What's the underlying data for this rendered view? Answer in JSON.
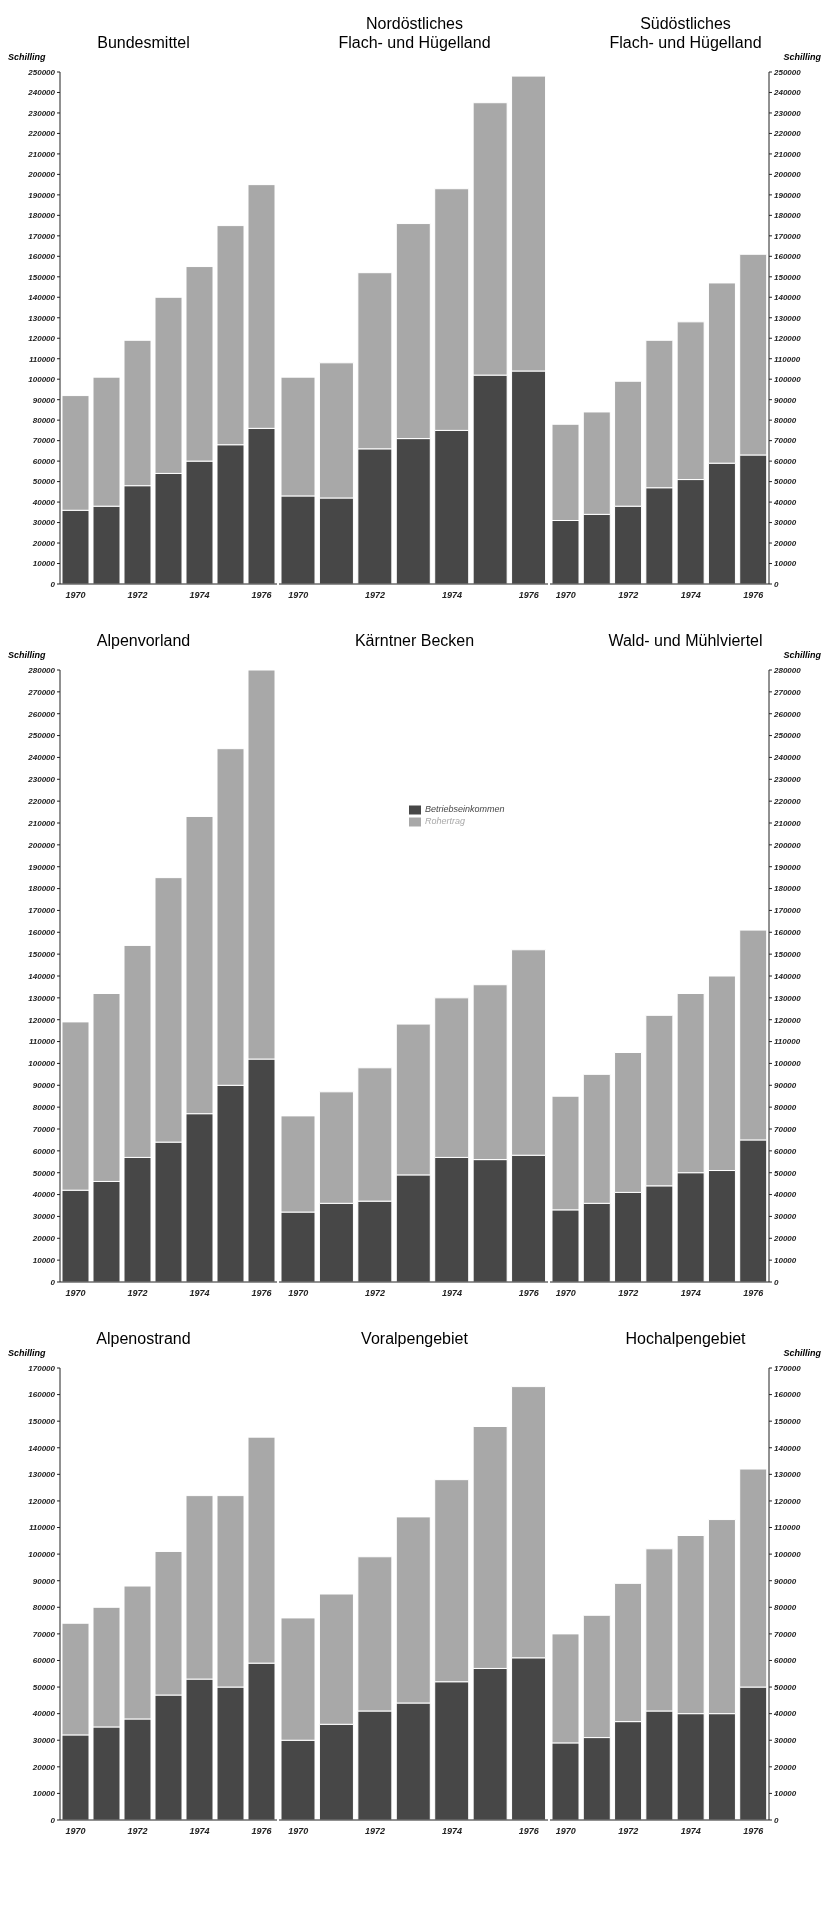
{
  "chart_data": [
    {
      "type": "bar",
      "title": "Bundesmittel",
      "ylabel": "Schilling",
      "stacked": true,
      "categories": [
        "1970",
        null,
        "1972",
        null,
        "1974",
        null,
        "1976"
      ],
      "ylim": [
        0,
        250000
      ],
      "yticks": [
        0,
        10000,
        20000,
        30000,
        40000,
        50000,
        60000,
        70000,
        80000,
        90000,
        100000,
        110000,
        120000,
        130000,
        140000,
        150000,
        160000,
        170000,
        180000,
        190000,
        200000,
        210000,
        220000,
        230000,
        240000,
        250000
      ],
      "series": [
        {
          "color": "#474747",
          "values": [
            36000,
            38000,
            48000,
            54000,
            60000,
            68000,
            76000
          ]
        },
        {
          "color": "#a8a8a8",
          "values": [
            56000,
            63000,
            71000,
            86000,
            95000,
            107000,
            119000
          ]
        }
      ]
    },
    {
      "type": "bar",
      "title": "Nordöstliches\nFlach- und Hügelland",
      "stacked": true,
      "tick_labels": "x",
      "categories": [
        "1970",
        null,
        "1972",
        null,
        "1974",
        null,
        "1976"
      ],
      "ylim": [
        0,
        250000
      ],
      "series": [
        {
          "color": "#474747",
          "values": [
            43000,
            42000,
            66000,
            71000,
            75000,
            102000,
            104000
          ]
        },
        {
          "color": "#a8a8a8",
          "values": [
            58000,
            66000,
            86000,
            105000,
            118000,
            133000,
            144000
          ]
        }
      ]
    },
    {
      "type": "bar",
      "title": "Südöstliches\nFlach- und Hügelland",
      "ylabel": "Schilling",
      "stacked": true,
      "categories": [
        "1970",
        null,
        "1972",
        null,
        "1974",
        null,
        "1976"
      ],
      "ylim": [
        0,
        250000
      ],
      "yticks": [
        0,
        10000,
        20000,
        30000,
        40000,
        50000,
        60000,
        70000,
        80000,
        90000,
        100000,
        110000,
        120000,
        130000,
        140000,
        150000,
        160000,
        170000,
        180000,
        190000,
        200000,
        210000,
        220000,
        230000,
        240000,
        250000
      ],
      "series": [
        {
          "color": "#474747",
          "values": [
            31000,
            34000,
            38000,
            47000,
            51000,
            59000,
            63000
          ]
        },
        {
          "color": "#a8a8a8",
          "values": [
            47000,
            50000,
            61000,
            72000,
            77000,
            88000,
            98000
          ]
        }
      ]
    },
    {
      "type": "bar",
      "title": "Alpenvorland",
      "ylabel": "Schilling",
      "stacked": true,
      "categories": [
        "1970",
        null,
        "1972",
        null,
        "1974",
        null,
        "1976"
      ],
      "ylim": [
        0,
        280000
      ],
      "yticks": [
        0,
        10000,
        20000,
        30000,
        40000,
        50000,
        60000,
        70000,
        80000,
        90000,
        100000,
        110000,
        120000,
        130000,
        140000,
        150000,
        160000,
        170000,
        180000,
        190000,
        200000,
        210000,
        220000,
        230000,
        240000,
        250000,
        260000,
        270000,
        280000
      ],
      "series": [
        {
          "color": "#474747",
          "values": [
            42000,
            46000,
            57000,
            64000,
            77000,
            90000,
            102000
          ]
        },
        {
          "color": "#a8a8a8",
          "values": [
            77000,
            86000,
            97000,
            121000,
            136000,
            154000,
            178000
          ]
        }
      ]
    },
    {
      "type": "bar",
      "title": "Kärntner Becken",
      "stacked": true,
      "tick_labels": "x",
      "legend": "top right",
      "categories": [
        "1970",
        null,
        "1972",
        null,
        "1974",
        null,
        "1976"
      ],
      "ylim": [
        0,
        280000
      ],
      "series": [
        {
          "name": "Betriebseinkommen",
          "color": "#474747",
          "values": [
            32000,
            36000,
            37000,
            49000,
            57000,
            56000,
            58000
          ]
        },
        {
          "name": "Rohertrag",
          "color": "#a8a8a8",
          "values": [
            44000,
            51000,
            61000,
            69000,
            73000,
            80000,
            94000
          ]
        }
      ]
    },
    {
      "type": "bar",
      "title": "Wald- und Mühlviertel",
      "ylabel": "Schilling",
      "stacked": true,
      "categories": [
        "1970",
        null,
        "1972",
        null,
        "1974",
        null,
        "1976"
      ],
      "ylim": [
        0,
        280000
      ],
      "yticks": [
        0,
        10000,
        20000,
        30000,
        40000,
        50000,
        60000,
        70000,
        80000,
        90000,
        100000,
        110000,
        120000,
        130000,
        140000,
        150000,
        160000,
        170000,
        180000,
        190000,
        200000,
        210000,
        220000,
        230000,
        240000,
        250000,
        260000,
        270000,
        280000
      ],
      "series": [
        {
          "color": "#474747",
          "values": [
            33000,
            36000,
            41000,
            44000,
            50000,
            51000,
            65000
          ]
        },
        {
          "color": "#a8a8a8",
          "values": [
            52000,
            59000,
            64000,
            78000,
            82000,
            89000,
            96000
          ]
        }
      ]
    },
    {
      "type": "bar",
      "title": "Alpenostrand",
      "ylabel": "Schilling",
      "stacked": true,
      "categories": [
        "1970",
        null,
        "1972",
        null,
        "1974",
        null,
        "1976"
      ],
      "ylim": [
        0,
        170000
      ],
      "yticks": [
        0,
        10000,
        20000,
        30000,
        40000,
        50000,
        60000,
        70000,
        80000,
        90000,
        100000,
        110000,
        120000,
        130000,
        140000,
        150000,
        160000,
        170000
      ],
      "series": [
        {
          "color": "#474747",
          "values": [
            32000,
            35000,
            38000,
            47000,
            53000,
            50000,
            59000
          ]
        },
        {
          "color": "#a8a8a8",
          "values": [
            42000,
            45000,
            50000,
            54000,
            69000,
            72000,
            85000
          ]
        }
      ]
    },
    {
      "type": "bar",
      "title": "Voralpengebiet",
      "stacked": true,
      "tick_labels": "x",
      "categories": [
        "1970",
        null,
        "1972",
        null,
        "1974",
        null,
        "1976"
      ],
      "ylim": [
        0,
        170000
      ],
      "series": [
        {
          "color": "#474747",
          "values": [
            30000,
            36000,
            41000,
            44000,
            52000,
            57000,
            61000
          ]
        },
        {
          "color": "#a8a8a8",
          "values": [
            46000,
            49000,
            58000,
            70000,
            76000,
            91000,
            102000
          ]
        }
      ]
    },
    {
      "type": "bar",
      "title": "Hochalpengebiet",
      "ylabel": "Schilling",
      "stacked": true,
      "categories": [
        "1970",
        null,
        "1972",
        null,
        "1974",
        null,
        "1976"
      ],
      "ylim": [
        0,
        170000
      ],
      "yticks": [
        0,
        10000,
        20000,
        30000,
        40000,
        50000,
        60000,
        70000,
        80000,
        90000,
        100000,
        110000,
        120000,
        130000,
        140000,
        150000,
        160000,
        170000
      ],
      "series": [
        {
          "color": "#474747",
          "values": [
            29000,
            31000,
            37000,
            41000,
            40000,
            40000,
            50000
          ]
        },
        {
          "color": "#a8a8a8",
          "values": [
            41000,
            46000,
            52000,
            61000,
            67000,
            73000,
            82000
          ]
        }
      ]
    }
  ]
}
